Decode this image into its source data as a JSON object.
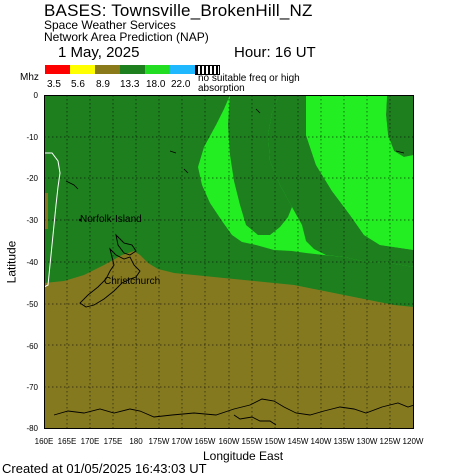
{
  "header": {
    "title": "BASES: Townsville_BrokenHill_NZ",
    "subtitle1": "Space Weather Services",
    "subtitle2": "Network Area Prediction (NAP)",
    "date": "1 May, 2025",
    "hour": "Hour: 16 UT"
  },
  "legend": {
    "unit": "Mhz",
    "boxes": [
      {
        "color": "#ff0000",
        "label": "3.5"
      },
      {
        "color": "#ffff00",
        "label": "5.6"
      },
      {
        "color": "#8b7a1a",
        "label": "8.9"
      },
      {
        "color": "#1e7f1e",
        "label": "13.3"
      },
      {
        "color": "#22dd22",
        "label": "18.0"
      },
      {
        "color": "#1fb8ff",
        "label": "22.0"
      }
    ],
    "no_freq_text": "no suitable freq or high absorption"
  },
  "axes": {
    "ylabel": "Latitude",
    "xlabel": "Longitude East",
    "yticks": [
      "0",
      "-10",
      "-20",
      "-30",
      "-40",
      "-50",
      "-60",
      "-70",
      "-80"
    ],
    "xticks": [
      "160E",
      "165E",
      "170E",
      "175E",
      "180",
      "175W",
      "170W",
      "165W",
      "160W",
      "155W",
      "150W",
      "145W",
      "140W",
      "135W",
      "130W",
      "125W",
      "120W"
    ]
  },
  "places": {
    "norfolk": "Norfolk-Island",
    "christchurch": "Christchurch"
  },
  "footer": {
    "created": "Created at 01/05/2025 16:43:03 UT"
  },
  "colors": {
    "olive": "#857920",
    "dark_green": "#1e7f1e",
    "bright_green": "#22ee22"
  }
}
